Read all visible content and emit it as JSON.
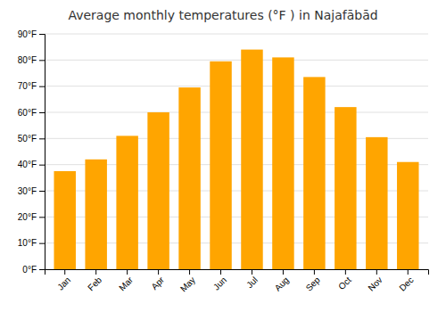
{
  "chart_data": {
    "type": "bar",
    "title": "Average monthly temperatures (°F ) in Najafābād",
    "categories": [
      "Jan",
      "Feb",
      "Mar",
      "Apr",
      "May",
      "Jun",
      "Jul",
      "Aug",
      "Sep",
      "Oct",
      "Nov",
      "Dec"
    ],
    "values": [
      37.5,
      42,
      51,
      60,
      69.5,
      79.5,
      84,
      81,
      73.5,
      62,
      50.5,
      41
    ],
    "color": "#FFA500",
    "ylim": [
      0,
      90
    ],
    "yticks": [
      {
        "value": 0,
        "label": "0°F"
      },
      {
        "value": 10,
        "label": "10°F"
      },
      {
        "value": 20,
        "label": "20°F"
      },
      {
        "value": 30,
        "label": "30°F"
      },
      {
        "value": 40,
        "label": "40°F"
      },
      {
        "value": 50,
        "label": "50°F"
      },
      {
        "value": 60,
        "label": "60°F"
      },
      {
        "value": 70,
        "label": "70°F"
      },
      {
        "value": 80,
        "label": "80°F"
      },
      {
        "value": 90,
        "label": "90°F"
      }
    ],
    "grid": true
  }
}
